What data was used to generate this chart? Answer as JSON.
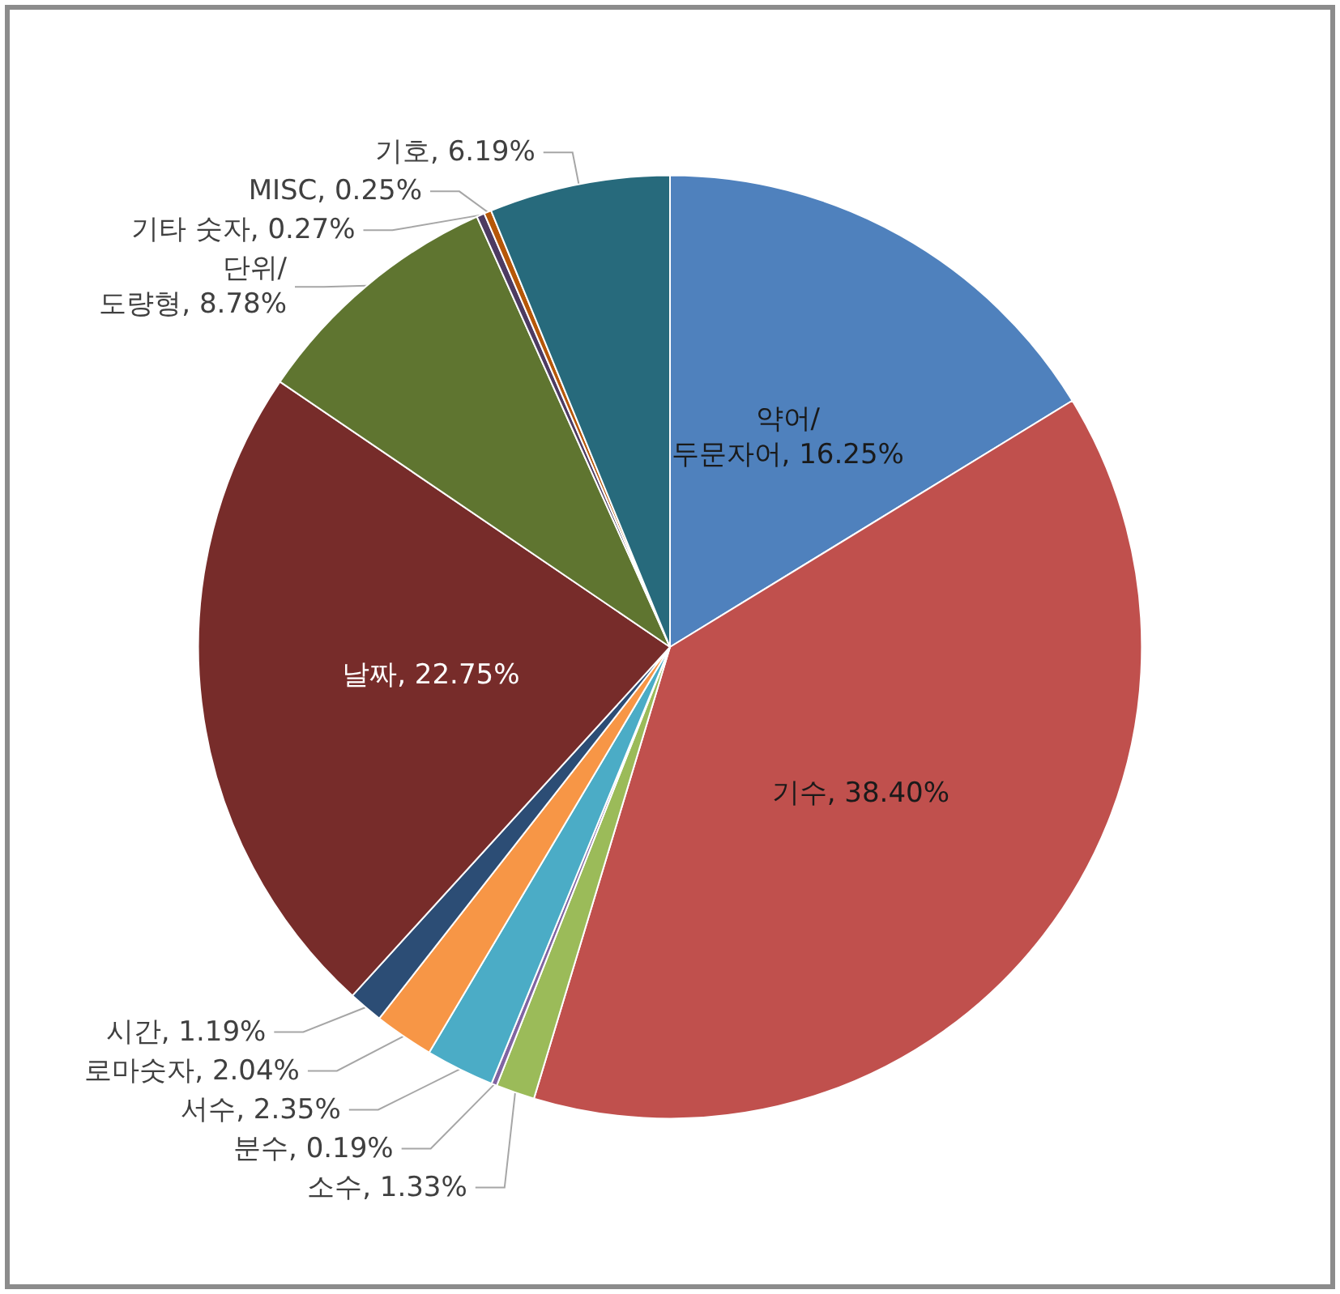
{
  "chart_data": {
    "type": "pie",
    "categories": [
      "약어/두문자어",
      "기수",
      "소수",
      "분수",
      "서수",
      "로마숫자",
      "시간",
      "날짜",
      "단위/도량형",
      "기타 숫자",
      "MISC",
      "기호"
    ],
    "value_labels": [
      "16.25%",
      "38.40%",
      "1.33%",
      "0.19%",
      "2.35%",
      "2.04%",
      "1.19%",
      "22.75%",
      "8.78%",
      "0.27%",
      "0.25%",
      "6.19%"
    ],
    "values": [
      16.25,
      38.4,
      1.33,
      0.19,
      2.35,
      2.04,
      1.19,
      22.75,
      8.78,
      0.27,
      0.25,
      6.19
    ],
    "colors": [
      "#4f81bd",
      "#c0504d",
      "#9bbb59",
      "#8064a2",
      "#4bacc6",
      "#f79646",
      "#2c4d75",
      "#772c2a",
      "#5f7530",
      "#4d3b62",
      "#b65708",
      "#276a7c"
    ],
    "data_labels": true,
    "legend": false
  }
}
